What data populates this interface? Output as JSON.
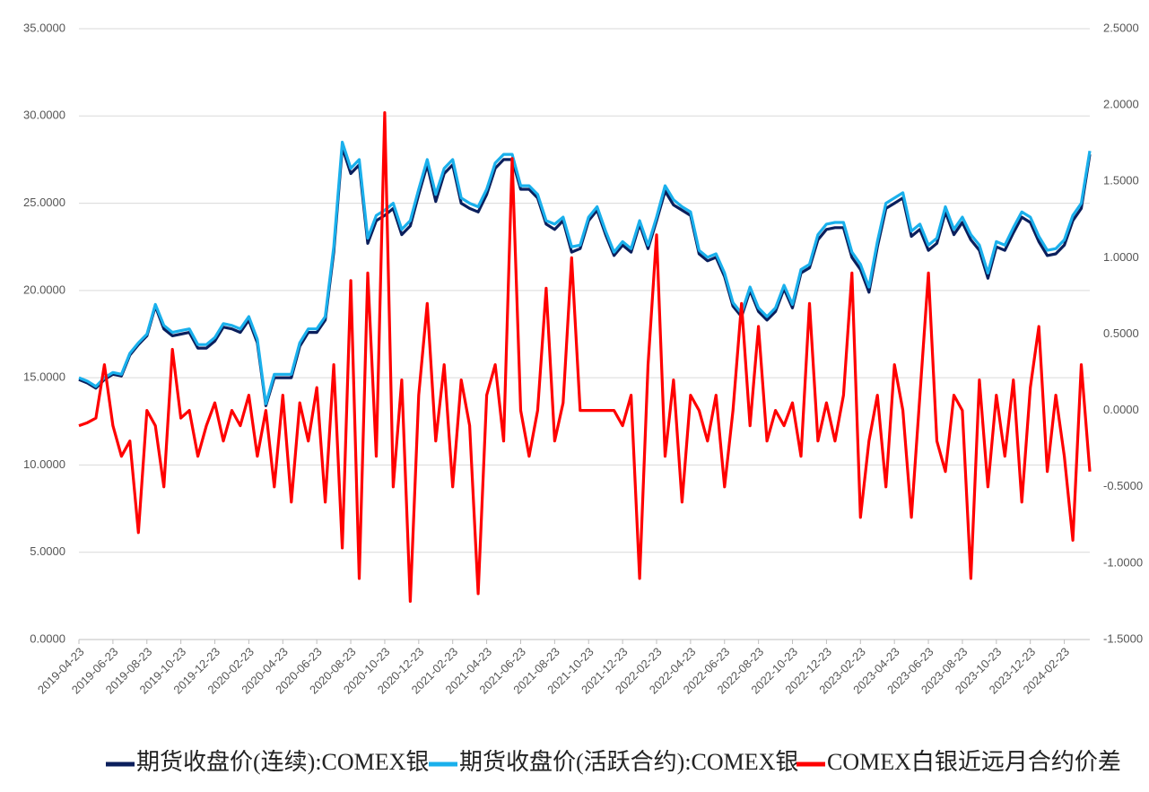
{
  "chart_data": {
    "type": "line",
    "x": [
      "2019-04-23",
      "2019-05-08",
      "2019-05-23",
      "2019-06-08",
      "2019-06-23",
      "2019-07-08",
      "2019-07-23",
      "2019-08-08",
      "2019-08-23",
      "2019-09-08",
      "2019-09-23",
      "2019-10-08",
      "2019-10-23",
      "2019-11-08",
      "2019-11-23",
      "2019-12-08",
      "2019-12-23",
      "2020-01-08",
      "2020-01-23",
      "2020-02-08",
      "2020-02-23",
      "2020-03-08",
      "2020-03-23",
      "2020-04-08",
      "2020-04-23",
      "2020-05-08",
      "2020-05-23",
      "2020-06-08",
      "2020-06-23",
      "2020-07-08",
      "2020-07-23",
      "2020-08-08",
      "2020-08-23",
      "2020-09-08",
      "2020-09-23",
      "2020-10-08",
      "2020-10-23",
      "2020-11-08",
      "2020-11-23",
      "2020-12-08",
      "2020-12-23",
      "2021-01-08",
      "2021-01-23",
      "2021-02-08",
      "2021-02-23",
      "2021-03-08",
      "2021-03-23",
      "2021-04-08",
      "2021-04-23",
      "2021-05-08",
      "2021-05-23",
      "2021-06-08",
      "2021-06-23",
      "2021-07-08",
      "2021-07-23",
      "2021-08-08",
      "2021-08-23",
      "2021-09-08",
      "2021-09-23",
      "2021-10-08",
      "2021-10-23",
      "2021-11-08",
      "2021-11-23",
      "2021-12-08",
      "2021-12-23",
      "2022-01-08",
      "2022-01-23",
      "2022-02-08",
      "2022-02-23",
      "2022-03-08",
      "2022-03-23",
      "2022-04-08",
      "2022-04-23",
      "2022-05-08",
      "2022-05-23",
      "2022-06-08",
      "2022-06-23",
      "2022-07-08",
      "2022-07-23",
      "2022-08-08",
      "2022-08-23",
      "2022-09-08",
      "2022-09-23",
      "2022-10-08",
      "2022-10-23",
      "2022-11-08",
      "2022-11-23",
      "2022-12-08",
      "2022-12-23",
      "2023-01-08",
      "2023-01-23",
      "2023-02-08",
      "2023-02-23",
      "2023-03-08",
      "2023-03-23",
      "2023-04-08",
      "2023-04-23",
      "2023-05-08",
      "2023-05-23",
      "2023-06-08",
      "2023-06-23",
      "2023-07-08",
      "2023-07-23",
      "2023-08-08",
      "2023-08-23",
      "2023-09-08",
      "2023-09-23",
      "2023-10-08",
      "2023-10-23",
      "2023-11-08",
      "2023-11-23",
      "2023-12-08",
      "2023-12-23",
      "2024-01-08",
      "2024-01-23",
      "2024-02-08",
      "2024-02-23",
      "2024-03-08",
      "2024-03-23",
      "2024-04-08"
    ],
    "xtick_step": 4,
    "series": [
      {
        "name": "期货收盘价(连续):COMEX银",
        "color": "#0b1f5c",
        "values": [
          14.9,
          14.7,
          14.4,
          14.9,
          15.2,
          15.1,
          16.3,
          16.9,
          17.4,
          19.1,
          17.8,
          17.4,
          17.5,
          17.6,
          16.7,
          16.7,
          17.1,
          17.9,
          17.8,
          17.6,
          18.3,
          17.0,
          13.4,
          15.0,
          15.0,
          15.0,
          16.8,
          17.6,
          17.6,
          18.3,
          22.2,
          28.2,
          26.7,
          27.2,
          22.7,
          24.0,
          24.3,
          24.7,
          23.2,
          23.7,
          25.5,
          27.2,
          25.1,
          26.7,
          27.2,
          25.0,
          24.7,
          24.5,
          25.5,
          27.0,
          27.5,
          27.5,
          25.8,
          25.8,
          25.3,
          23.8,
          23.5,
          24.0,
          22.2,
          22.4,
          24.0,
          24.6,
          23.2,
          22.0,
          22.6,
          22.2,
          23.8,
          22.4,
          24.0,
          25.7,
          24.9,
          24.6,
          24.3,
          22.1,
          21.7,
          21.9,
          20.8,
          19.1,
          18.5,
          20.0,
          18.8,
          18.3,
          18.8,
          20.1,
          19.0,
          21.0,
          21.3,
          22.9,
          23.5,
          23.6,
          23.6,
          21.9,
          21.2,
          19.9,
          22.5,
          24.7,
          25.0,
          25.3,
          23.1,
          23.5,
          22.3,
          22.7,
          24.5,
          23.2,
          23.9,
          22.9,
          22.3,
          20.7,
          22.5,
          22.3,
          23.3,
          24.2,
          23.9,
          22.8,
          22.0,
          22.1,
          22.6,
          24.0,
          24.7,
          27.8
        ]
      },
      {
        "name": "期货收盘价(活跃合约):COMEX银",
        "color": "#1ab0ec",
        "values": [
          15.0,
          14.8,
          14.5,
          15.0,
          15.3,
          15.2,
          16.4,
          17.0,
          17.5,
          19.2,
          18.0,
          17.6,
          17.7,
          17.8,
          16.9,
          16.9,
          17.3,
          18.1,
          18.0,
          17.8,
          18.5,
          17.2,
          13.5,
          15.2,
          15.2,
          15.2,
          17.0,
          17.8,
          17.8,
          18.5,
          22.5,
          28.5,
          27.0,
          27.5,
          23.0,
          24.3,
          24.6,
          25.0,
          23.5,
          24.0,
          25.8,
          27.5,
          25.5,
          27.0,
          27.5,
          25.3,
          25.0,
          24.8,
          25.8,
          27.3,
          27.8,
          27.8,
          26.0,
          26.0,
          25.5,
          24.0,
          23.8,
          24.2,
          22.5,
          22.6,
          24.2,
          24.8,
          23.4,
          22.2,
          22.8,
          22.4,
          24.0,
          22.6,
          24.2,
          26.0,
          25.2,
          24.8,
          24.5,
          22.3,
          21.9,
          22.1,
          21.0,
          19.3,
          18.7,
          20.2,
          19.0,
          18.5,
          19.0,
          20.3,
          19.2,
          21.2,
          21.5,
          23.2,
          23.8,
          23.9,
          23.9,
          22.2,
          21.5,
          20.2,
          22.8,
          25.0,
          25.3,
          25.6,
          23.4,
          23.8,
          22.6,
          23.0,
          24.8,
          23.5,
          24.2,
          23.2,
          22.6,
          21.0,
          22.8,
          22.6,
          23.6,
          24.5,
          24.2,
          23.1,
          22.3,
          22.4,
          22.9,
          24.3,
          25.0,
          28.0
        ]
      },
      {
        "name": "COMEX白银近远月合约价差",
        "color": "#ff0000",
        "axis": "y2",
        "values": [
          -0.1,
          -0.08,
          -0.05,
          0.3,
          -0.1,
          -0.3,
          -0.2,
          -0.8,
          0.0,
          -0.1,
          -0.5,
          0.4,
          -0.05,
          0.0,
          -0.3,
          -0.1,
          0.05,
          -0.2,
          0.0,
          -0.1,
          0.1,
          -0.3,
          0.0,
          -0.5,
          0.1,
          -0.6,
          0.05,
          -0.2,
          0.15,
          -0.6,
          0.3,
          -0.9,
          0.85,
          -1.1,
          0.9,
          -0.3,
          1.95,
          -0.5,
          0.2,
          -1.25,
          0.1,
          0.7,
          -0.2,
          0.3,
          -0.5,
          0.2,
          -0.1,
          -1.2,
          0.1,
          0.3,
          -0.2,
          1.65,
          0.0,
          -0.3,
          0.0,
          0.8,
          -0.2,
          0.05,
          1.0,
          0.0,
          0.0,
          0.0,
          0.0,
          0.0,
          -0.1,
          0.1,
          -1.1,
          0.3,
          1.15,
          -0.3,
          0.2,
          -0.6,
          0.1,
          0.0,
          -0.2,
          0.1,
          -0.5,
          0.0,
          0.7,
          -0.1,
          0.55,
          -0.2,
          0.0,
          -0.1,
          0.05,
          -0.3,
          0.7,
          -0.2,
          0.05,
          -0.2,
          0.1,
          0.9,
          -0.7,
          -0.2,
          0.1,
          -0.5,
          0.3,
          0.0,
          -0.7,
          0.1,
          0.9,
          -0.2,
          -0.4,
          0.1,
          0.0,
          -1.1,
          0.2,
          -0.5,
          0.1,
          -0.3,
          0.2,
          -0.6,
          0.15,
          0.55,
          -0.4,
          0.1,
          -0.3,
          -0.85,
          0.3,
          -0.4
        ]
      }
    ],
    "ylim": [
      0,
      35
    ],
    "yticks": [
      {
        "value": 0,
        "label": "0.0000"
      },
      {
        "value": 5,
        "label": "5.0000"
      },
      {
        "value": 10,
        "label": "10.0000"
      },
      {
        "value": 15,
        "label": "15.0000"
      },
      {
        "value": 20,
        "label": "20.0000"
      },
      {
        "value": 25,
        "label": "25.0000"
      },
      {
        "value": 30,
        "label": "30.0000"
      },
      {
        "value": 35,
        "label": "35.0000"
      }
    ],
    "y2lim": [
      -1.5,
      2.5
    ],
    "y2ticks": [
      {
        "value": -1.5,
        "label": "-1.5000"
      },
      {
        "value": -1,
        "label": "-1.0000"
      },
      {
        "value": -0.5,
        "label": "-0.5000"
      },
      {
        "value": 0,
        "label": "0.0000"
      },
      {
        "value": 0.5,
        "label": "0.5000"
      },
      {
        "value": 1,
        "label": "1.0000"
      },
      {
        "value": 1.5,
        "label": "1.5000"
      },
      {
        "value": 2,
        "label": "2.0000"
      },
      {
        "value": 2.5,
        "label": "2.5000"
      }
    ],
    "grid": true,
    "legend": "bottom"
  }
}
